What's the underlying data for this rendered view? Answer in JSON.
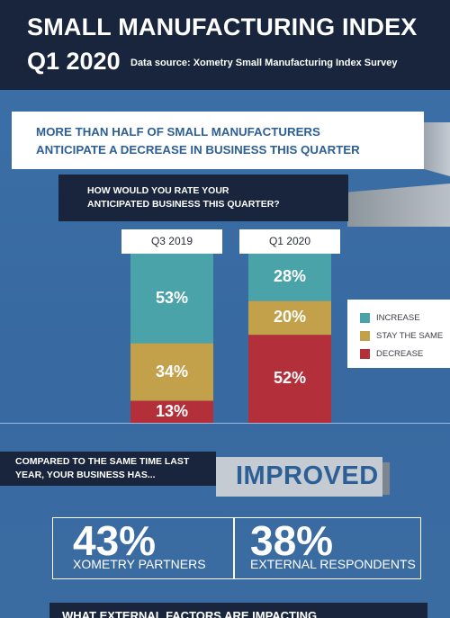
{
  "header": {
    "title": "SMALL MANUFACTURING INDEX",
    "quarter": "Q1 2020",
    "source": "Data source: Xometry Small Manufacturing Index Survey"
  },
  "banner": {
    "line1": "MORE THAN HALF OF SMALL MANUFACTURERS",
    "line2": "ANTICIPATE A DECREASE IN BUSINESS THIS QUARTER"
  },
  "question": {
    "line1": "HOW WOULD YOU RATE YOUR",
    "line2": "ANTICIPATED BUSINESS THIS QUARTER?"
  },
  "chart_data": {
    "type": "bar",
    "stacked": true,
    "categories": [
      "Q3 2019",
      "Q1 2020"
    ],
    "series": [
      {
        "name": "INCREASE",
        "color": "#4aa3a9",
        "values": [
          53,
          28
        ]
      },
      {
        "name": "STAY THE SAME",
        "color": "#c3a04a",
        "values": [
          34,
          20
        ]
      },
      {
        "name": "DECREASE",
        "color": "#b3303a",
        "values": [
          13,
          52
        ]
      }
    ],
    "data_labels": [
      [
        "53%",
        "28%"
      ],
      [
        "34%",
        "20%"
      ],
      [
        "13%",
        "52%"
      ]
    ],
    "legend_position": "right",
    "ylim": [
      0,
      100
    ]
  },
  "comparison": {
    "line1": "COMPARED TO THE SAME TIME LAST",
    "line2": "YEAR, YOUR BUSINESS HAS...",
    "answer": "IMPROVED"
  },
  "stats": [
    {
      "value": "43%",
      "label": "XOMETRY PARTNERS"
    },
    {
      "value": "38%",
      "label": "EXTERNAL RESPONDENTS"
    }
  ],
  "next_section": {
    "title": "WHAT EXTERNAL FACTORS ARE IMPACTING"
  }
}
